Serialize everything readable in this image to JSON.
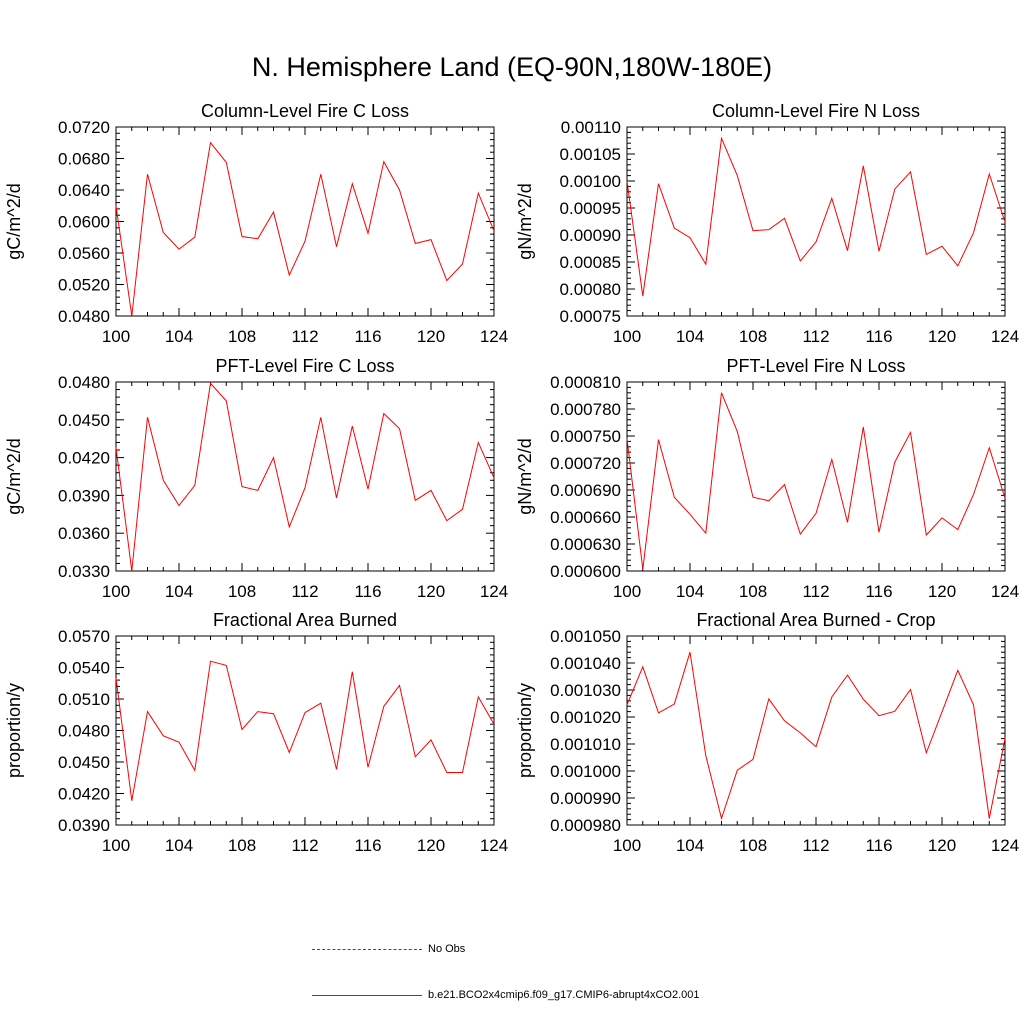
{
  "page_title": "N. Hemisphere Land (EQ-90N,180W-180E)",
  "colors": {
    "series": "#ff0000",
    "obs": "#3b3bcf",
    "axis": "#000000"
  },
  "legend": {
    "items": [
      {
        "label": "No Obs",
        "style": "dashed",
        "color": "#3b3bcf"
      },
      {
        "label": "b.e21.BCO2x4cmip6.f09_g17.CMIP6-abrupt4xCO2.001",
        "style": "solid",
        "color": "#ff0000"
      }
    ]
  },
  "chart_data": [
    {
      "type": "line",
      "title": "Column-Level Fire C Loss",
      "ylabel": "gC/m^2/d",
      "xlabel": "",
      "xlim": [
        100,
        124
      ],
      "ylim": [
        0.048,
        0.072
      ],
      "xticks": [
        "100",
        "104",
        "108",
        "112",
        "116",
        "120",
        "124"
      ],
      "yticks": [
        "0.0480",
        "0.0520",
        "0.0560",
        "0.0600",
        "0.0640",
        "0.0680",
        "0.0720"
      ],
      "x": [
        100,
        101,
        102,
        103,
        104,
        105,
        106,
        107,
        108,
        109,
        110,
        111,
        112,
        113,
        114,
        115,
        116,
        117,
        118,
        119,
        120,
        121,
        122,
        123,
        124
      ],
      "series": [
        {
          "values": [
            0.062,
            0.048,
            0.066,
            0.0586,
            0.0565,
            0.058,
            0.07,
            0.0675,
            0.0581,
            0.0578,
            0.0612,
            0.0532,
            0.0575,
            0.066,
            0.0568,
            0.0648,
            0.0585,
            0.0676,
            0.064,
            0.0572,
            0.0577,
            0.0525,
            0.0546,
            0.0636,
            0.0588
          ]
        }
      ]
    },
    {
      "type": "line",
      "title": "Column-Level Fire N Loss",
      "ylabel": "gN/m^2/d",
      "xlabel": "",
      "xlim": [
        100,
        124
      ],
      "ylim": [
        0.00075,
        0.0011
      ],
      "xticks": [
        "100",
        "104",
        "108",
        "112",
        "116",
        "120",
        "124"
      ],
      "yticks": [
        "0.00075",
        "0.00080",
        "0.00085",
        "0.00090",
        "0.00095",
        "0.00100",
        "0.00105",
        "0.00110"
      ],
      "x": [
        100,
        101,
        102,
        103,
        104,
        105,
        106,
        107,
        108,
        109,
        110,
        111,
        112,
        113,
        114,
        115,
        116,
        117,
        118,
        119,
        120,
        121,
        122,
        123,
        124
      ],
      "series": [
        {
          "values": [
            0.001,
            0.000787,
            0.000995,
            0.000913,
            0.000895,
            0.000846,
            0.001079,
            0.00101,
            0.000908,
            0.00091,
            0.000931,
            0.000852,
            0.000887,
            0.000968,
            0.000871,
            0.001028,
            0.00087,
            0.000985,
            0.001017,
            0.000864,
            0.000879,
            0.000843,
            0.000904,
            0.001013,
            0.000924
          ]
        }
      ]
    },
    {
      "type": "line",
      "title": "PFT-Level Fire C Loss",
      "ylabel": "gC/m^2/d",
      "xlabel": "",
      "xlim": [
        100,
        124
      ],
      "ylim": [
        0.033,
        0.048
      ],
      "xticks": [
        "100",
        "104",
        "108",
        "112",
        "116",
        "120",
        "124"
      ],
      "yticks": [
        "0.0330",
        "0.0360",
        "0.0390",
        "0.0420",
        "0.0450",
        "0.0480"
      ],
      "x": [
        100,
        101,
        102,
        103,
        104,
        105,
        106,
        107,
        108,
        109,
        110,
        111,
        112,
        113,
        114,
        115,
        116,
        117,
        118,
        119,
        120,
        121,
        122,
        123,
        124
      ],
      "series": [
        {
          "values": [
            0.0428,
            0.033,
            0.0452,
            0.0402,
            0.0382,
            0.0398,
            0.0479,
            0.0465,
            0.0397,
            0.0394,
            0.042,
            0.0365,
            0.0396,
            0.0452,
            0.0388,
            0.0445,
            0.0395,
            0.0455,
            0.0443,
            0.0386,
            0.0394,
            0.037,
            0.0379,
            0.0432,
            0.0404
          ]
        }
      ]
    },
    {
      "type": "line",
      "title": "PFT-Level Fire N Loss",
      "ylabel": "gN/m^2/d",
      "xlabel": "",
      "xlim": [
        100,
        124
      ],
      "ylim": [
        0.0006,
        0.00081
      ],
      "xticks": [
        "100",
        "104",
        "108",
        "112",
        "116",
        "120",
        "124"
      ],
      "yticks": [
        "0.000600",
        "0.000630",
        "0.000660",
        "0.000690",
        "0.000720",
        "0.000750",
        "0.000780",
        "0.000810"
      ],
      "x": [
        100,
        101,
        102,
        103,
        104,
        105,
        106,
        107,
        108,
        109,
        110,
        111,
        112,
        113,
        114,
        115,
        116,
        117,
        118,
        119,
        120,
        121,
        122,
        123,
        124
      ],
      "series": [
        {
          "values": [
            0.000747,
            0.000602,
            0.000746,
            0.000682,
            0.000663,
            0.000642,
            0.000798,
            0.000755,
            0.000682,
            0.000678,
            0.000696,
            0.000641,
            0.000664,
            0.000724,
            0.000654,
            0.00076,
            0.000643,
            0.000721,
            0.000754,
            0.00064,
            0.000659,
            0.000646,
            0.000685,
            0.000737,
            0.000681
          ]
        }
      ]
    },
    {
      "type": "line",
      "title": "Fractional Area Burned",
      "ylabel": "proportion/y",
      "xlabel": "",
      "xlim": [
        100,
        124
      ],
      "ylim": [
        0.039,
        0.057
      ],
      "xticks": [
        "100",
        "104",
        "108",
        "112",
        "116",
        "120",
        "124"
      ],
      "yticks": [
        "0.0390",
        "0.0420",
        "0.0450",
        "0.0480",
        "0.0510",
        "0.0540",
        "0.0570"
      ],
      "x": [
        100,
        101,
        102,
        103,
        104,
        105,
        106,
        107,
        108,
        109,
        110,
        111,
        112,
        113,
        114,
        115,
        116,
        117,
        118,
        119,
        120,
        121,
        122,
        123,
        124
      ],
      "series": [
        {
          "values": [
            0.053,
            0.0413,
            0.0498,
            0.0475,
            0.0469,
            0.0442,
            0.0546,
            0.0542,
            0.0481,
            0.0498,
            0.0496,
            0.0459,
            0.0497,
            0.0506,
            0.0443,
            0.0536,
            0.0445,
            0.0503,
            0.0523,
            0.0455,
            0.0471,
            0.044,
            0.044,
            0.0512,
            0.0486
          ]
        }
      ]
    },
    {
      "type": "line",
      "title": "Fractional Area Burned - Crop",
      "ylabel": "proportion/y",
      "xlabel": "",
      "xlim": [
        100,
        124
      ],
      "ylim": [
        0.00098,
        0.00105
      ],
      "xticks": [
        "100",
        "104",
        "108",
        "112",
        "116",
        "120",
        "124"
      ],
      "yticks": [
        "0.000980",
        "0.000990",
        "0.001000",
        "0.001010",
        "0.001020",
        "0.001030",
        "0.001040",
        "0.001050"
      ],
      "x": [
        100,
        101,
        102,
        103,
        104,
        105,
        106,
        107,
        108,
        109,
        110,
        111,
        112,
        113,
        114,
        115,
        116,
        117,
        118,
        119,
        120,
        121,
        122,
        123,
        124
      ],
      "series": [
        {
          "values": [
            0.0010245,
            0.0010386,
            0.0010215,
            0.0010248,
            0.001044,
            0.0010057,
            0.0009824,
            0.0010003,
            0.0010043,
            0.0010267,
            0.0010186,
            0.0010141,
            0.001009,
            0.0010274,
            0.0010355,
            0.0010266,
            0.0010205,
            0.0010221,
            0.0010302,
            0.0010067,
            0.0010219,
            0.0010373,
            0.0010245,
            0.0009824,
            0.0010122
          ]
        }
      ]
    }
  ]
}
